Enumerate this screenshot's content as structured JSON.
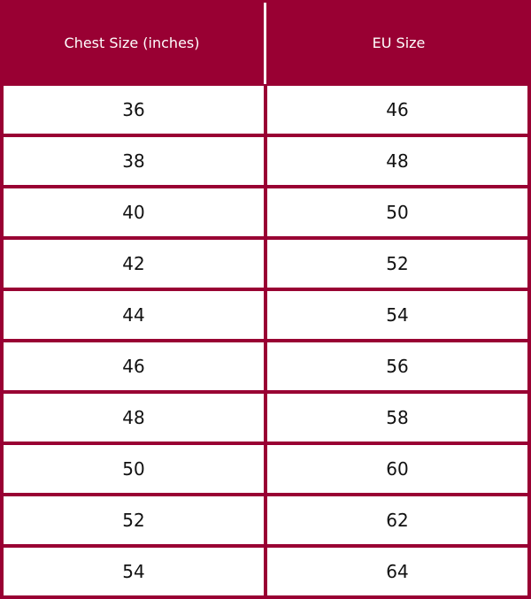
{
  "table": {
    "accent_color": "#990033",
    "headers": [
      "Chest Size (inches)",
      "EU Size"
    ],
    "rows": [
      [
        "36",
        "46"
      ],
      [
        "38",
        "48"
      ],
      [
        "40",
        "50"
      ],
      [
        "42",
        "52"
      ],
      [
        "44",
        "54"
      ],
      [
        "46",
        "56"
      ],
      [
        "48",
        "58"
      ],
      [
        "50",
        "60"
      ],
      [
        "52",
        "62"
      ],
      [
        "54",
        "64"
      ]
    ]
  }
}
